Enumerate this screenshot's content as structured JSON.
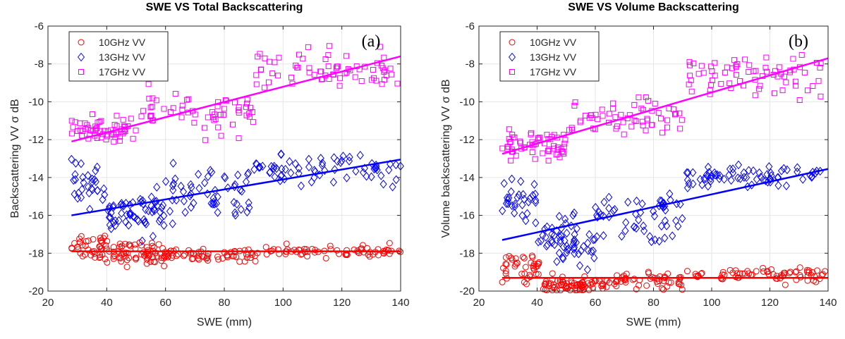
{
  "chart_data": [
    {
      "type": "scatter",
      "title": "SWE VS Total Backscattering",
      "panel_label": "(a)",
      "xlabel": "SWE (mm)",
      "ylabel": "Backscattering VV σ dB",
      "xlim": [
        20,
        140
      ],
      "ylim": [
        -20,
        -6
      ],
      "xticks": [
        20,
        40,
        60,
        80,
        100,
        120,
        140
      ],
      "yticks": [
        -20,
        -18,
        -16,
        -14,
        -12,
        -10,
        -8,
        -6
      ],
      "grid": true,
      "legend_position": "top-left",
      "series": [
        {
          "name": "10GHz VV",
          "marker": "circle",
          "color": "#ff0000",
          "fit": [
            [
              28,
              -17.9
            ],
            [
              140,
              -17.9
            ]
          ],
          "clusters": [
            {
              "x": [
                28,
                40
              ],
              "y": [
                -17.6,
                0.4
              ],
              "n": 40
            },
            {
              "x": [
                40,
                60
              ],
              "y": [
                -18.0,
                0.3
              ],
              "n": 70
            },
            {
              "x": [
                60,
                90
              ],
              "y": [
                -18.1,
                0.15
              ],
              "n": 60
            },
            {
              "x": [
                90,
                140
              ],
              "y": [
                -17.9,
                0.15
              ],
              "n": 70
            }
          ]
        },
        {
          "name": "13GHz VV",
          "marker": "diamond",
          "color": "#0000ff",
          "fit": [
            [
              28,
              -16.0
            ],
            [
              140,
              -13.05
            ]
          ],
          "clusters": [
            {
              "x": [
                28,
                40
              ],
              "y": [
                -14.4,
                0.5
              ],
              "n": 30
            },
            {
              "x": [
                40,
                60
              ],
              "y": [
                -15.9,
                0.5
              ],
              "n": 60
            },
            {
              "x": [
                60,
                90
              ],
              "y": [
                -15.0,
                0.8
              ],
              "n": 55
            },
            {
              "x": [
                90,
                140
              ],
              "y": [
                -13.6,
                0.35
              ],
              "n": 70
            }
          ]
        },
        {
          "name": "17GHz VV",
          "marker": "square",
          "color": "#ff00ff",
          "fit": [
            [
              28,
              -12.1
            ],
            [
              140,
              -7.6
            ]
          ],
          "clusters": [
            {
              "x": [
                28,
                50
              ],
              "y": [
                -11.5,
                0.4
              ],
              "n": 60
            },
            {
              "x": [
                50,
                90
              ],
              "y": [
                -10.6,
                0.5
              ],
              "n": 60
            },
            {
              "x": [
                90,
                140
              ],
              "y": [
                -8.3,
                0.5
              ],
              "n": 70
            }
          ]
        }
      ]
    },
    {
      "type": "scatter",
      "title": "SWE VS Volume Backscattering",
      "panel_label": "(b)",
      "xlabel": "SWE (mm)",
      "ylabel": "Volume backscattering VV σ dB",
      "xlim": [
        20,
        140
      ],
      "ylim": [
        -20,
        -6
      ],
      "xticks": [
        20,
        40,
        60,
        80,
        100,
        120,
        140
      ],
      "yticks": [
        -20,
        -18,
        -16,
        -14,
        -12,
        -10,
        -8,
        -6
      ],
      "grid": true,
      "legend_position": "top-left",
      "series": [
        {
          "name": "10GHz VV",
          "marker": "circle",
          "color": "#ff0000",
          "fit": [
            [
              28,
              -19.3
            ],
            [
              140,
              -19.3
            ]
          ],
          "clusters": [
            {
              "x": [
                28,
                42
              ],
              "y": [
                -18.8,
                0.4
              ],
              "n": 40
            },
            {
              "x": [
                42,
                60
              ],
              "y": [
                -19.7,
                0.2
              ],
              "n": 70
            },
            {
              "x": [
                60,
                90
              ],
              "y": [
                -19.5,
                0.2
              ],
              "n": 60
            },
            {
              "x": [
                90,
                140
              ],
              "y": [
                -19.1,
                0.2
              ],
              "n": 70
            }
          ]
        },
        {
          "name": "13GHz VV",
          "marker": "diamond",
          "color": "#0000ff",
          "fit": [
            [
              28,
              -17.3
            ],
            [
              140,
              -13.55
            ]
          ],
          "clusters": [
            {
              "x": [
                28,
                40
              ],
              "y": [
                -15.2,
                0.6
              ],
              "n": 30
            },
            {
              "x": [
                40,
                60
              ],
              "y": [
                -17.3,
                0.6
              ],
              "n": 60
            },
            {
              "x": [
                60,
                90
              ],
              "y": [
                -16.3,
                0.8
              ],
              "n": 55
            },
            {
              "x": [
                90,
                140
              ],
              "y": [
                -14.0,
                0.3
              ],
              "n": 70
            }
          ]
        },
        {
          "name": "17GHz VV",
          "marker": "square",
          "color": "#ff00ff",
          "fit": [
            [
              28,
              -12.75
            ],
            [
              140,
              -7.7
            ]
          ],
          "clusters": [
            {
              "x": [
                28,
                50
              ],
              "y": [
                -12.3,
                0.4
              ],
              "n": 60
            },
            {
              "x": [
                50,
                90
              ],
              "y": [
                -10.9,
                0.5
              ],
              "n": 60
            },
            {
              "x": [
                90,
                140
              ],
              "y": [
                -8.6,
                0.5
              ],
              "n": 70
            }
          ]
        }
      ]
    }
  ]
}
